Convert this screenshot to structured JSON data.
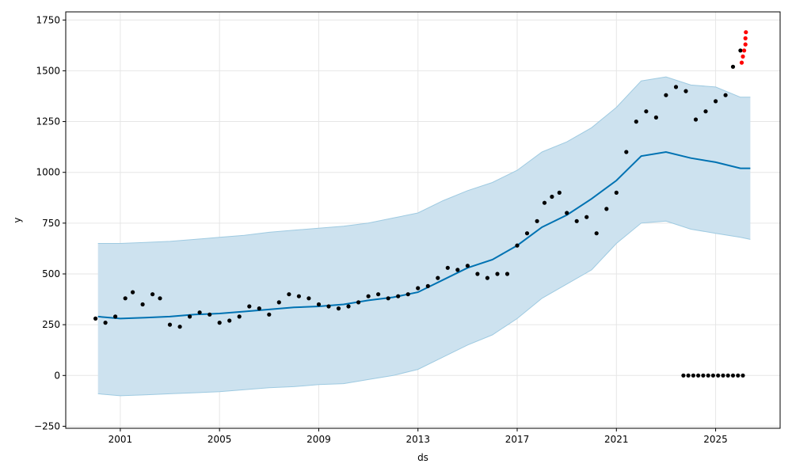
{
  "chart_data": {
    "type": "line",
    "title": "",
    "xlabel": "ds",
    "ylabel": "y",
    "xlim": [
      1998.8,
      2027.6
    ],
    "ylim": [
      -260,
      1790
    ],
    "grid": true,
    "x_ticks": [
      {
        "value": 2001,
        "label": "2001"
      },
      {
        "value": 2005,
        "label": "2005"
      },
      {
        "value": 2009,
        "label": "2009"
      },
      {
        "value": 2013,
        "label": "2013"
      },
      {
        "value": 2017,
        "label": "2017"
      },
      {
        "value": 2021,
        "label": "2021"
      },
      {
        "value": 2025,
        "label": "2025"
      }
    ],
    "y_ticks": [
      {
        "value": -250,
        "label": "−250"
      },
      {
        "value": 0,
        "label": "0"
      },
      {
        "value": 250,
        "label": "250"
      },
      {
        "value": 500,
        "label": "500"
      },
      {
        "value": 750,
        "label": "750"
      },
      {
        "value": 1000,
        "label": "1000"
      },
      {
        "value": 1250,
        "label": "1250"
      },
      {
        "value": 1500,
        "label": "1500"
      },
      {
        "value": 1750,
        "label": "1750"
      }
    ],
    "forecast": {
      "x": [
        2000.1,
        2001.0,
        2002.0,
        2003.0,
        2004.0,
        2005.0,
        2006.0,
        2007.0,
        2008.0,
        2009.0,
        2010.0,
        2011.0,
        2012.0,
        2013.0,
        2014.0,
        2015.0,
        2016.0,
        2017.0,
        2018.0,
        2019.0,
        2020.0,
        2021.0,
        2022.0,
        2023.0,
        2024.0,
        2025.0,
        2026.0,
        2026.4
      ],
      "yhat": [
        290,
        280,
        285,
        290,
        300,
        305,
        315,
        325,
        335,
        340,
        350,
        370,
        385,
        410,
        470,
        530,
        570,
        640,
        730,
        790,
        870,
        960,
        1080,
        1100,
        1070,
        1050,
        1020,
        1020
      ],
      "lower": [
        -90,
        -100,
        -95,
        -90,
        -85,
        -80,
        -70,
        -60,
        -55,
        -45,
        -40,
        -20,
        0,
        30,
        90,
        150,
        200,
        280,
        380,
        450,
        520,
        650,
        750,
        760,
        720,
        700,
        680,
        670
      ],
      "upper": [
        650,
        650,
        655,
        660,
        670,
        680,
        690,
        705,
        715,
        725,
        735,
        750,
        775,
        800,
        860,
        910,
        950,
        1010,
        1100,
        1150,
        1220,
        1320,
        1450,
        1470,
        1430,
        1420,
        1370,
        1370
      ]
    },
    "observed": {
      "x": [
        2000.0,
        2000.4,
        2000.8,
        2001.2,
        2001.5,
        2001.9,
        2002.3,
        2002.6,
        2003.0,
        2003.4,
        2003.8,
        2004.2,
        2004.6,
        2005.0,
        2005.4,
        2005.8,
        2006.2,
        2006.6,
        2007.0,
        2007.4,
        2007.8,
        2008.2,
        2008.6,
        2009.0,
        2009.4,
        2009.8,
        2010.2,
        2010.6,
        2011.0,
        2011.4,
        2011.8,
        2012.2,
        2012.6,
        2013.0,
        2013.4,
        2013.8,
        2014.2,
        2014.6,
        2015.0,
        2015.4,
        2015.8,
        2016.2,
        2016.6,
        2017.0,
        2017.4,
        2017.8,
        2018.1,
        2018.4,
        2018.7,
        2019.0,
        2019.4,
        2019.8,
        2020.2,
        2020.6,
        2021.0,
        2021.4,
        2021.8,
        2022.2,
        2022.6,
        2023.0,
        2023.4,
        2023.8,
        2024.2,
        2024.6,
        2025.0,
        2025.4,
        2025.7,
        2026.0
      ],
      "y": [
        280,
        260,
        290,
        380,
        410,
        350,
        400,
        380,
        250,
        240,
        290,
        310,
        300,
        260,
        270,
        290,
        340,
        330,
        300,
        360,
        400,
        390,
        380,
        350,
        340,
        330,
        340,
        360,
        390,
        400,
        380,
        390,
        400,
        430,
        440,
        480,
        530,
        520,
        540,
        500,
        480,
        500,
        500,
        640,
        700,
        760,
        850,
        880,
        900,
        800,
        760,
        780,
        700,
        820,
        900,
        1100,
        1250,
        1300,
        1270,
        1380,
        1420,
        1400,
        1260,
        1300,
        1350,
        1380,
        1520,
        1600
      ]
    },
    "zero_points": {
      "x": [
        2023.7,
        2023.9,
        2024.1,
        2024.3,
        2024.5,
        2024.7,
        2024.9,
        2025.1,
        2025.3,
        2025.5,
        2025.7,
        2025.9,
        2026.1
      ],
      "y": [
        0,
        0,
        0,
        0,
        0,
        0,
        0,
        0,
        0,
        0,
        0,
        0,
        0
      ]
    },
    "highlighted": {
      "x": [
        2026.05,
        2026.1,
        2026.15,
        2026.2,
        2026.2,
        2026.22
      ],
      "y": [
        1540,
        1570,
        1600,
        1630,
        1660,
        1690
      ]
    },
    "colors": {
      "forecast_line": "#0072b2",
      "band_fill": "#cde2ef",
      "band_edge": "#9ecae1",
      "observed_points": "#000000",
      "highlighted_points": "#ff0000",
      "grid": "#e6e6e6"
    }
  }
}
